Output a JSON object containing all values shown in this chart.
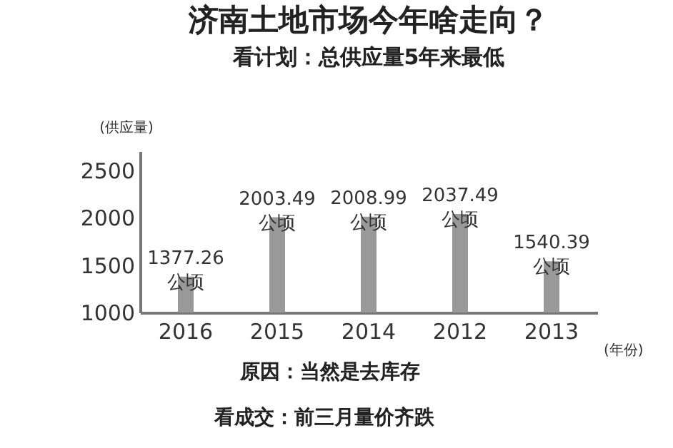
{
  "chart_data": {
    "type": "bar",
    "title": "济南土地市场今年啥走向？",
    "subtitle": "看计划：总供应量5年来最低",
    "ylabel": "(供应量)",
    "xlabel": "(年份)",
    "categories": [
      "2016",
      "2015",
      "2014",
      "2012",
      "2013"
    ],
    "values": [
      1377.26,
      2003.49,
      2008.99,
      2037.49,
      1540.39
    ],
    "value_labels": [
      "1377.26\n公顷",
      "2003.49\n公顷",
      "2008.99\n公顷",
      "2037.49\n公顷",
      "1540.39\n公顷"
    ],
    "color": "#999999",
    "ylim": [
      1000,
      2700
    ],
    "yticks": [
      1000,
      1500,
      2000,
      2500
    ],
    "grid": false,
    "annotations": [
      "原因：当然是去库存",
      "看成交：前三月量价齐跌"
    ]
  }
}
